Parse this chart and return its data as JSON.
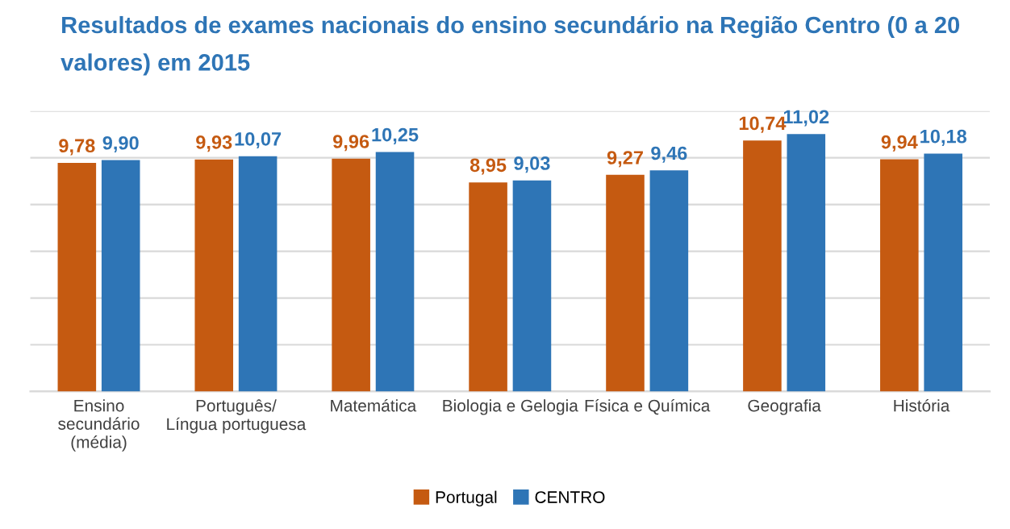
{
  "chart_data": {
    "type": "bar",
    "title": "Resultados de exames nacionais do ensino secundário na Região Centro (0 a 20\nvalores) em 2015",
    "categories": [
      "Ensino\nsecundário\n(média)",
      "Português/\nLíngua portuguesa",
      "Matemática",
      "Biologia e Gelogia",
      "Física e Química",
      "Geografia",
      "História"
    ],
    "series": [
      {
        "name": "Portugal",
        "color": "#c55a11",
        "values": [
          9.78,
          9.93,
          9.96,
          8.95,
          9.27,
          10.74,
          9.94
        ],
        "value_labels": [
          "9,78",
          "9,93",
          "9,96",
          "8,95",
          "9,27",
          "10,74",
          "9,94"
        ]
      },
      {
        "name": "CENTRO",
        "color": "#2e75b6",
        "values": [
          9.9,
          10.07,
          10.25,
          9.03,
          9.46,
          11.02,
          10.18
        ],
        "value_labels": [
          "9,90",
          "10,07",
          "10,25",
          "9,03",
          "9,46",
          "11,02",
          "10,18"
        ]
      }
    ],
    "ylim": [
      0,
      12
    ],
    "yticks": [
      {
        "value": 0,
        "label": null
      },
      {
        "value": 2,
        "label": null
      },
      {
        "value": 4,
        "label": null
      },
      {
        "value": 6,
        "label": null
      },
      {
        "value": 8,
        "label": null
      },
      {
        "value": 10,
        "label": null
      },
      {
        "value": 12,
        "label": null
      }
    ],
    "tick_labels": "x",
    "grid": "y",
    "legend": "bottom"
  }
}
